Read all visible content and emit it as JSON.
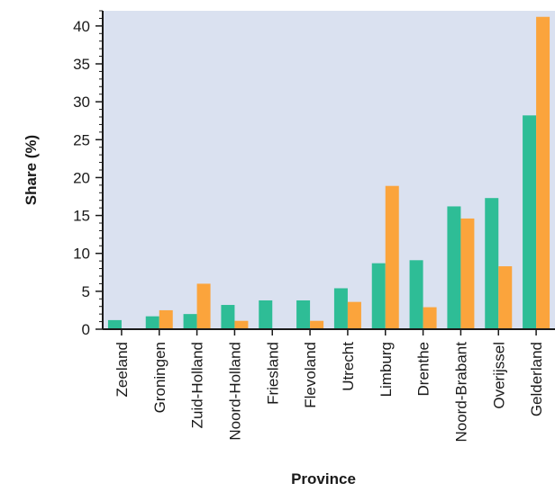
{
  "chart_data": {
    "type": "bar",
    "xlabel": "Province",
    "ylabel": "Share (%)",
    "ylim": [
      0,
      42
    ],
    "yticks": [
      0,
      5,
      10,
      15,
      20,
      25,
      30,
      35,
      40
    ],
    "grid": false,
    "legend": "none",
    "background_color": "#dae1f0",
    "categories": [
      "Zeeland",
      "Groningen",
      "Zuid-Holland",
      "Noord-Holland",
      "Friesland",
      "Flevoland",
      "Utrecht",
      "Limburg",
      "Drenthe",
      "Noord-Brabant",
      "Overijssel",
      "Gelderland"
    ],
    "series": [
      {
        "color": "#2ebd96",
        "values": [
          1.2,
          1.7,
          2.0,
          3.2,
          3.8,
          3.8,
          5.4,
          8.7,
          9.1,
          16.2,
          17.3,
          28.2
        ]
      },
      {
        "color": "#fba43c",
        "values": [
          0,
          2.5,
          6.0,
          1.1,
          0,
          1.1,
          3.6,
          18.9,
          2.9,
          14.6,
          8.3,
          41.2
        ]
      }
    ]
  }
}
